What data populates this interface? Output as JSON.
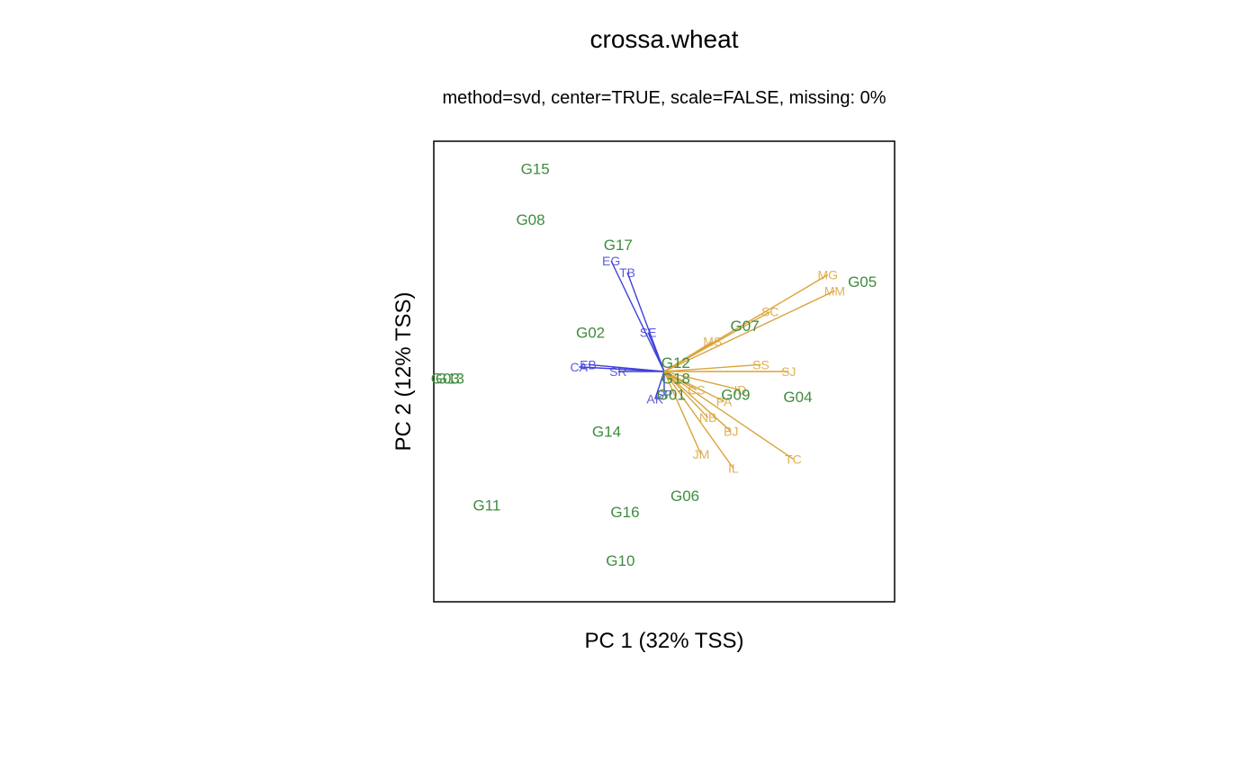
{
  "chart_data": {
    "type": "scatter",
    "title": "crossa.wheat",
    "subtitle": "method=svd, center=TRUE, scale=FALSE, missing: 0%",
    "xlabel": "PC 1 (32% TSS)",
    "ylabel": "PC 2 (12% TSS)",
    "xlim": [
      -1,
      1
    ],
    "ylim": [
      -1,
      1
    ],
    "axis_ticks_shown": false,
    "grid": false,
    "legend": "none",
    "colors": {
      "genotype": "#3f8c3f",
      "environment_group1": "#4040d9",
      "environment_group2": "#d9a43a",
      "frame": "#000000"
    },
    "genotypes": [
      {
        "label": "G15",
        "x": -0.56,
        "y": 0.88
      },
      {
        "label": "G08",
        "x": -0.58,
        "y": 0.66
      },
      {
        "label": "G17",
        "x": -0.2,
        "y": 0.55
      },
      {
        "label": "G05",
        "x": 0.86,
        "y": 0.39
      },
      {
        "label": "G02",
        "x": -0.32,
        "y": 0.17
      },
      {
        "label": "G07",
        "x": 0.35,
        "y": 0.2
      },
      {
        "label": "G12",
        "x": 0.05,
        "y": 0.04
      },
      {
        "label": "G18",
        "x": 0.05,
        "y": -0.03
      },
      {
        "label": "G01",
        "x": 0.03,
        "y": -0.1
      },
      {
        "label": "G09",
        "x": 0.31,
        "y": -0.1
      },
      {
        "label": "G04",
        "x": 0.58,
        "y": -0.11
      },
      {
        "label": "G03",
        "x": -0.95,
        "y": -0.03
      },
      {
        "label": "G13",
        "x": -0.93,
        "y": -0.03
      },
      {
        "label": "G14",
        "x": -0.25,
        "y": -0.26
      },
      {
        "label": "G06",
        "x": 0.09,
        "y": -0.54
      },
      {
        "label": "G16",
        "x": -0.17,
        "y": -0.61
      },
      {
        "label": "G11",
        "x": -0.77,
        "y": -0.58
      },
      {
        "label": "G10",
        "x": -0.19,
        "y": -0.82
      }
    ],
    "environments": [
      {
        "label": "EG",
        "group": 1,
        "x": -0.23,
        "y": 0.48
      },
      {
        "label": "TB",
        "group": 1,
        "x": -0.16,
        "y": 0.43
      },
      {
        "label": "SE",
        "group": 1,
        "x": -0.07,
        "y": 0.17
      },
      {
        "label": "CA",
        "group": 1,
        "x": -0.37,
        "y": 0.02
      },
      {
        "label": "EB",
        "group": 1,
        "x": -0.33,
        "y": 0.03
      },
      {
        "label": "SR",
        "group": 1,
        "x": -0.2,
        "y": 0.0
      },
      {
        "label": "SP",
        "group": 1,
        "x": 0.0,
        "y": -0.1
      },
      {
        "label": "AK",
        "group": 1,
        "x": -0.04,
        "y": -0.12
      },
      {
        "label": "MG",
        "group": 2,
        "x": 0.71,
        "y": 0.42
      },
      {
        "label": "MM",
        "group": 2,
        "x": 0.74,
        "y": 0.35
      },
      {
        "label": "SC",
        "group": 2,
        "x": 0.46,
        "y": 0.26
      },
      {
        "label": "MS",
        "group": 2,
        "x": 0.21,
        "y": 0.13
      },
      {
        "label": "SS",
        "group": 2,
        "x": 0.42,
        "y": 0.03
      },
      {
        "label": "SJ",
        "group": 2,
        "x": 0.54,
        "y": 0.0
      },
      {
        "label": "ID",
        "group": 2,
        "x": 0.33,
        "y": -0.08
      },
      {
        "label": "PA",
        "group": 2,
        "x": 0.26,
        "y": -0.13
      },
      {
        "label": "CS",
        "group": 2,
        "x": 0.14,
        "y": -0.08
      },
      {
        "label": "NB",
        "group": 2,
        "x": 0.19,
        "y": -0.2
      },
      {
        "label": "BJ",
        "group": 2,
        "x": 0.29,
        "y": -0.26
      },
      {
        "label": "JM",
        "group": 2,
        "x": 0.16,
        "y": -0.36
      },
      {
        "label": "IL",
        "group": 2,
        "x": 0.3,
        "y": -0.42
      },
      {
        "label": "TC",
        "group": 2,
        "x": 0.56,
        "y": -0.38
      }
    ]
  }
}
